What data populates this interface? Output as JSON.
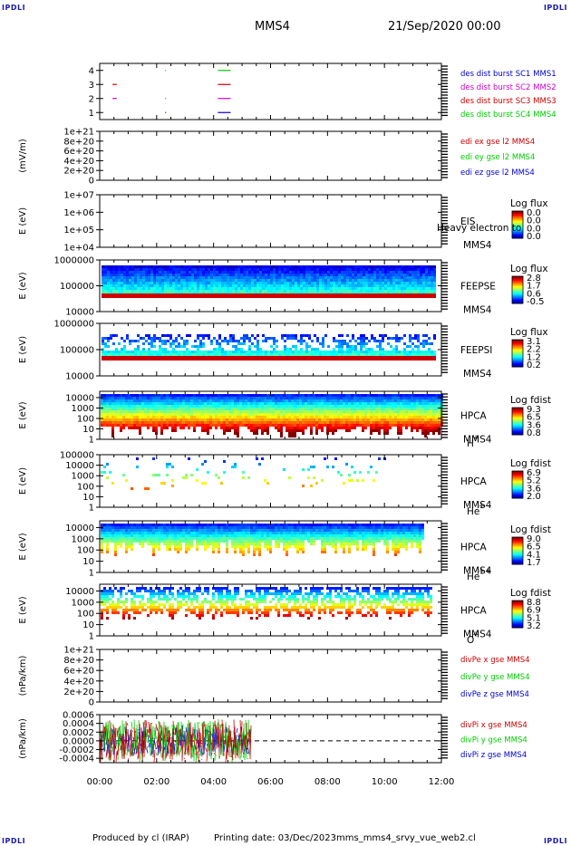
{
  "header": {
    "spacecraft": "MMS4",
    "date": "21/Sep/2020 00:00",
    "corner_left_top": "IPDLI",
    "corner_right_top": "IPDLI",
    "corner_left_bottom": "IPDLI",
    "corner_right_bottom": "IPDLI"
  },
  "footer": {
    "produced": "Produced by cl (IRAP)",
    "printed": "Printing date: 03/Dec/2023",
    "script": "mms_mms4_srvy_vue_web2.cl"
  },
  "colors": {
    "red": "#cc0000",
    "green": "#00cc00",
    "blue": "#0000cc",
    "magenta": "#cc00cc"
  },
  "chart_data": {
    "type": "multi-panel",
    "x_ticks": [
      "00:00",
      "02:00",
      "04:00",
      "06:00",
      "08:00",
      "10:00",
      "12:00"
    ],
    "x_range_hours": [
      0,
      12
    ],
    "panels": [
      {
        "id": "burst",
        "type": "scatter",
        "yticks": [
          "4",
          "3",
          "2",
          "1"
        ],
        "ylim": [
          0.5,
          4.5
        ],
        "series": [
          {
            "name": "des dist burst SC1 MMS1",
            "color": "#0000cc",
            "y": 1,
            "segments": [
              [
                4.15,
                4.6
              ],
              [
                2.3,
                2.32
              ]
            ]
          },
          {
            "name": "des dist burst SC2 MMS2",
            "color": "#cc00cc",
            "y": 2,
            "segments": [
              [
                0.45,
                0.6
              ],
              [
                2.3,
                2.32
              ],
              [
                4.15,
                4.6
              ]
            ]
          },
          {
            "name": "des dist burst SC3 MMS3",
            "color": "#cc0000",
            "y": 3,
            "segments": [
              [
                0.45,
                0.6
              ],
              [
                4.15,
                4.6
              ]
            ]
          },
          {
            "name": "des dist burst SC4 MMS4",
            "color": "#00cc00",
            "y": 4,
            "segments": [
              [
                2.3,
                2.32
              ],
              [
                4.15,
                4.6
              ]
            ]
          }
        ]
      },
      {
        "id": "edi",
        "type": "line",
        "ylabel": "(mV/m)",
        "yticks": [
          "1e+21",
          "8e+20",
          "6e+20",
          "4e+20",
          "2e+20",
          "0"
        ],
        "ylim": [
          0,
          1e+21
        ],
        "series": [
          {
            "name": "edi ex gse l2 MMS4",
            "color": "#cc0000"
          },
          {
            "name": "edi ey gse l2 MMS4",
            "color": "#00cc00"
          },
          {
            "name": "edi ez gse l2 MMS4",
            "color": "#0000cc"
          }
        ]
      },
      {
        "id": "eis",
        "type": "heatmap",
        "ylabel": "E (eV)",
        "yticks": [
          "1e+07",
          "1e+06",
          "1e+05",
          "1e+04"
        ],
        "ylim": [
          10000,
          10000000
        ],
        "inst": "EIS",
        "sub": "MMS4",
        "extra": "Heavy electron to",
        "cbar_title": "Log flux",
        "cbar_ticks": [
          "0.0",
          "0.0",
          "0.0",
          "0.0"
        ]
      },
      {
        "id": "feepse",
        "type": "heatmap",
        "ylabel": "E (eV)",
        "yticks": [
          "1000000",
          "100000",
          "10000"
        ],
        "ylim": [
          10000,
          1000000
        ],
        "inst": "FEEPSE",
        "sub": "MMS4",
        "cbar_title": "Log flux",
        "cbar_ticks": [
          "2.8",
          "1.7",
          "0.6",
          "-0.5"
        ],
        "coverage_hours": [
          0,
          11.8
        ]
      },
      {
        "id": "feepsi",
        "type": "heatmap",
        "ylabel": "E (eV)",
        "yticks": [
          "1000000",
          "100000",
          "10000"
        ],
        "ylim": [
          10000,
          1000000
        ],
        "inst": "FEEPSI",
        "sub": "MMS4",
        "cbar_title": "Log flux",
        "cbar_ticks": [
          "3.1",
          "2.2",
          "1.2",
          "0.2"
        ],
        "coverage_hours": [
          0,
          11.8
        ]
      },
      {
        "id": "hpca_h",
        "type": "heatmap",
        "ylabel": "E (eV)",
        "yticks": [
          "10000",
          "1000",
          "100",
          "10",
          "1"
        ],
        "ylim": [
          1,
          40000
        ],
        "inst": "HPCA",
        "sub": "MMS4",
        "species": "H",
        "species_sup": "+",
        "cbar_title": "Log fdist",
        "cbar_ticks": [
          "9.3",
          "6.5",
          "3.6",
          "0.8"
        ],
        "coverage_hours": [
          0,
          12
        ]
      },
      {
        "id": "hpca_he",
        "type": "heatmap",
        "ylabel": "E (eV)",
        "yticks": [
          "100000",
          "10000",
          "1000",
          "100",
          "10",
          "1"
        ],
        "ylim": [
          1,
          100000
        ],
        "inst": "HPCA",
        "sub": "MMS4",
        "species": "He",
        "species_sup": "+",
        "cbar_title": "Log fdist",
        "cbar_ticks": [
          "6.9",
          "5.2",
          "3.6",
          "2.0"
        ],
        "coverage_hours": [
          0,
          10.4
        ]
      },
      {
        "id": "hpca_hepp",
        "type": "heatmap",
        "ylabel": "E (eV)",
        "yticks": [
          "10000",
          "1000",
          "100",
          "10",
          "1"
        ],
        "ylim": [
          1,
          40000
        ],
        "inst": "HPCA",
        "sub": "MMS4",
        "species": "He",
        "species_sup": "++",
        "cbar_title": "Log fdist",
        "cbar_ticks": [
          "9.0",
          "6.5",
          "4.1",
          "1.7"
        ],
        "coverage_hours": [
          0,
          11.3
        ]
      },
      {
        "id": "hpca_o",
        "type": "heatmap",
        "ylabel": "E (eV)",
        "yticks": [
          "10000",
          "1000",
          "100",
          "10",
          "1"
        ],
        "ylim": [
          1,
          40000
        ],
        "inst": "HPCA",
        "sub": "MMS4",
        "species": "O",
        "species_sup": "+",
        "cbar_title": "Log fdist",
        "cbar_ticks": [
          "8.8",
          "6.9",
          "5.1",
          "3.2"
        ],
        "coverage_hours": [
          0,
          11.6
        ]
      },
      {
        "id": "divpe",
        "type": "line",
        "ylabel": "(nPa/km)",
        "yticks": [
          "1e+21",
          "8e+20",
          "6e+20",
          "4e+20",
          "2e+20",
          "0"
        ],
        "ylim": [
          0,
          1e+21
        ],
        "series": [
          {
            "name": "divPe x gse MMS4",
            "color": "#cc0000"
          },
          {
            "name": "divPe y gse MMS4",
            "color": "#00cc00"
          },
          {
            "name": "divPe z gse MMS4",
            "color": "#0000cc"
          }
        ]
      },
      {
        "id": "divpi",
        "type": "line",
        "ylabel": "(nPa/km)",
        "yticks": [
          "0.0006",
          "0.0004",
          "0.0002",
          "0.0000",
          "-0.0002",
          "-0.0004"
        ],
        "ylim": [
          -0.0005,
          0.0006
        ],
        "series": [
          {
            "name": "divPi x gse MMS4",
            "color": "#cc0000"
          },
          {
            "name": "divPi y gse MMS4",
            "color": "#00cc00"
          },
          {
            "name": "divPi z gse MMS4",
            "color": "#0000cc"
          }
        ],
        "coverage_hours": [
          0,
          5.3
        ]
      }
    ]
  }
}
